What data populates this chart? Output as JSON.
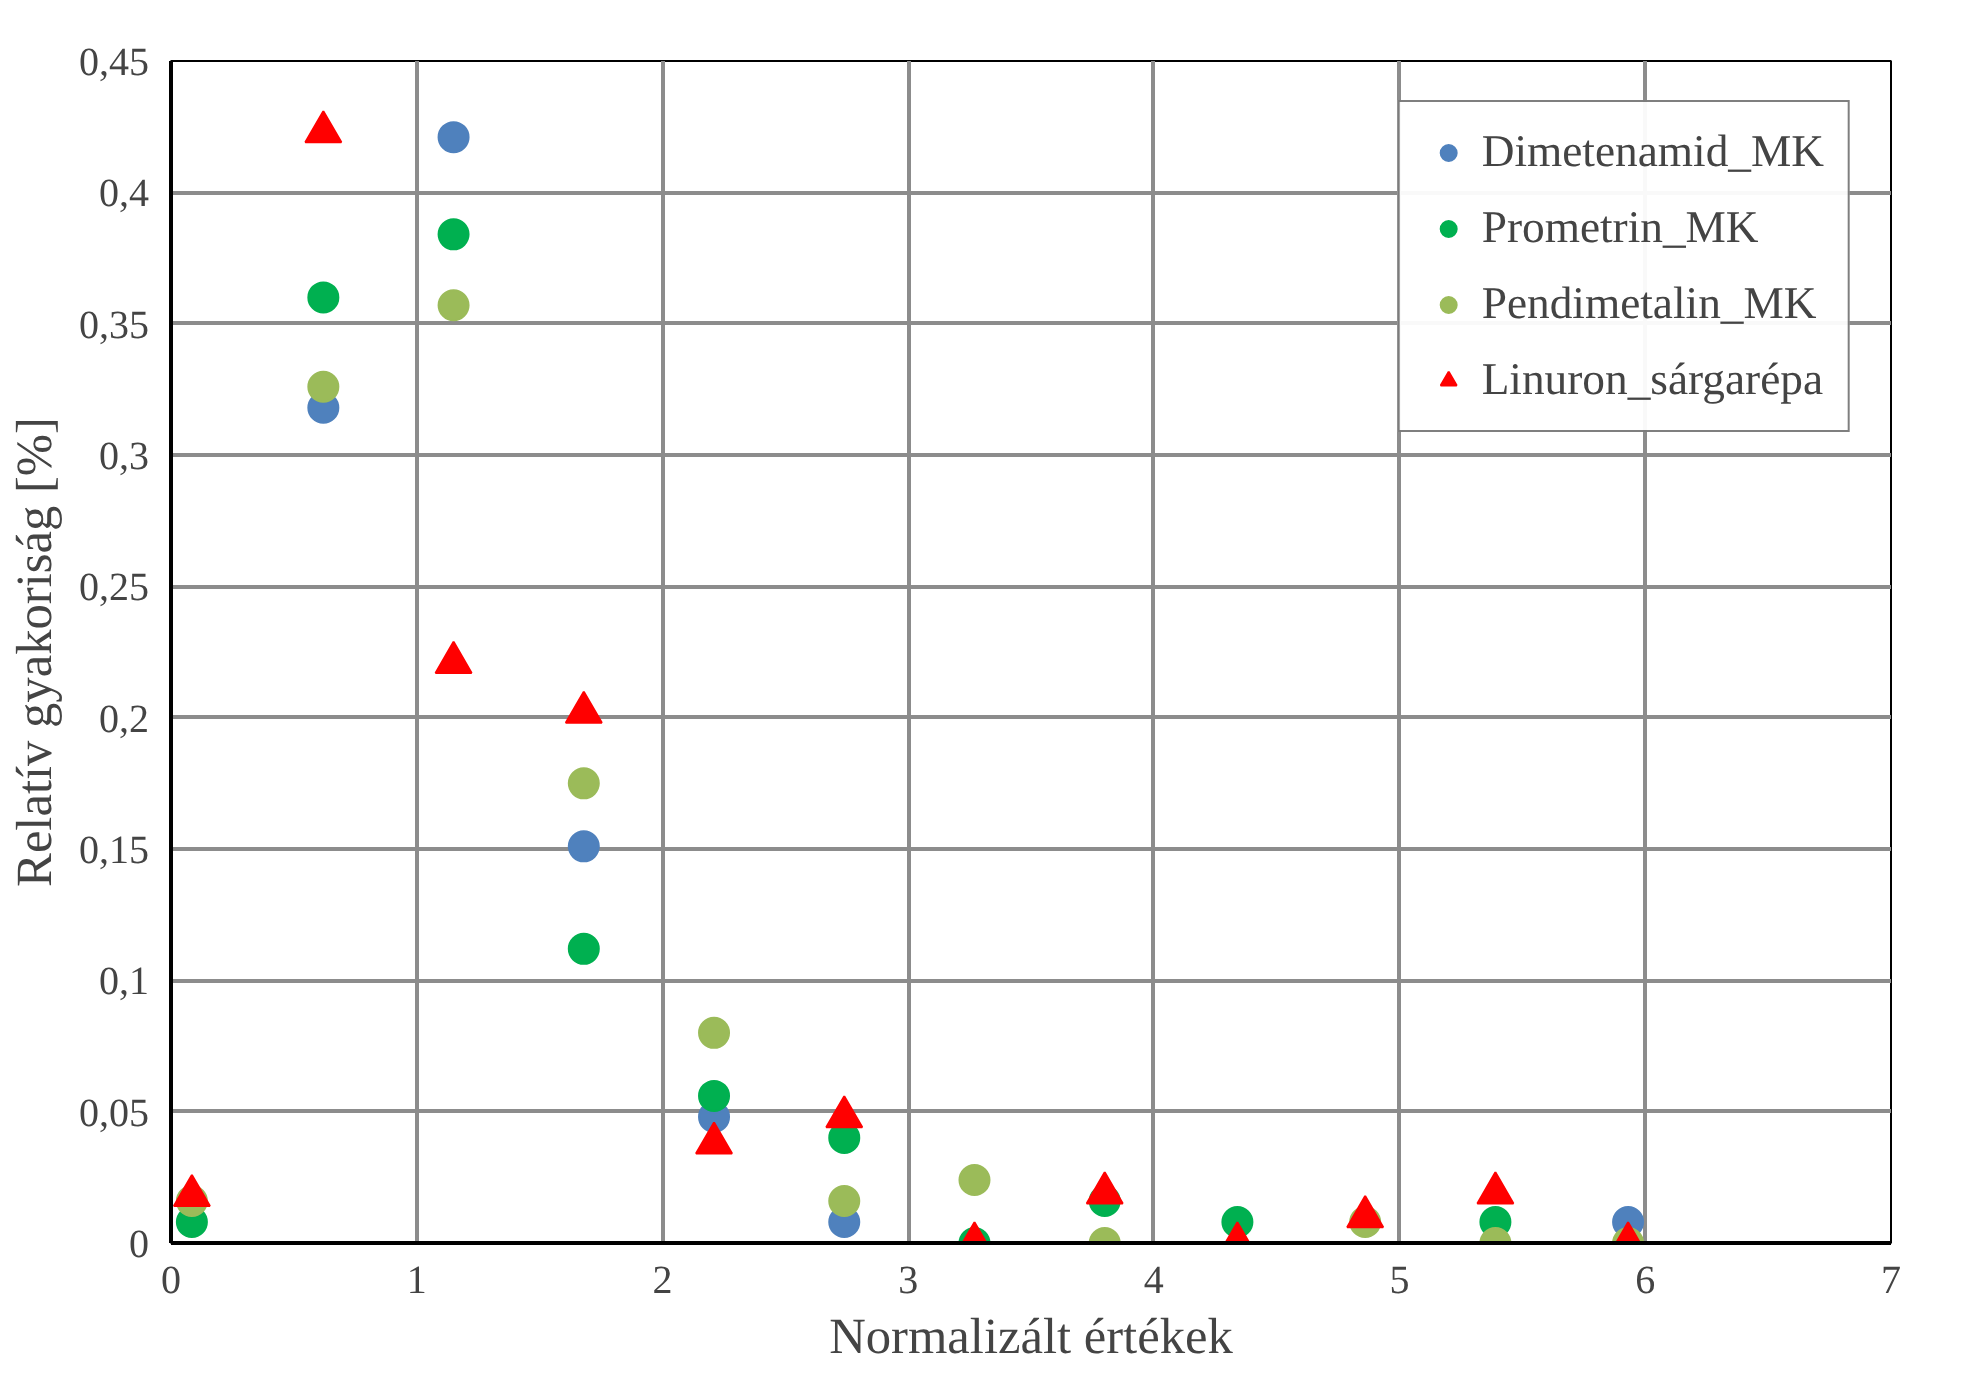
{
  "chart_data": {
    "type": "scatter",
    "xlabel": "Normalizált értékek",
    "ylabel": "Relatív gyakoriság [%]",
    "x": [
      0.085,
      0.62,
      1.15,
      1.68,
      2.21,
      2.74,
      3.27,
      3.8,
      4.34,
      4.86,
      5.39,
      5.93
    ],
    "xlim": [
      0,
      7
    ],
    "xticks": [
      0,
      1,
      2,
      3,
      4,
      5,
      6,
      7
    ],
    "ylim": [
      0,
      0.45
    ],
    "yticks": [
      {
        "value": 0,
        "label": "0"
      },
      {
        "value": 0.05,
        "label": "0,05"
      },
      {
        "value": 0.1,
        "label": "0,1"
      },
      {
        "value": 0.15,
        "label": "0,15"
      },
      {
        "value": 0.2,
        "label": "0,2"
      },
      {
        "value": 0.25,
        "label": "0,25"
      },
      {
        "value": 0.3,
        "label": "0,3"
      },
      {
        "value": 0.35,
        "label": "0,35"
      },
      {
        "value": 0.4,
        "label": "0,4"
      },
      {
        "value": 0.45,
        "label": "0,45"
      }
    ],
    "grid": true,
    "legend": "top right",
    "series": [
      {
        "name": "Dimetenamid_MK",
        "color": "#4f81bd",
        "marker": "circle",
        "values": [
          null,
          0.318,
          0.421,
          0.151,
          0.048,
          0.008,
          null,
          null,
          null,
          null,
          null,
          0.008
        ]
      },
      {
        "name": "Prometrin_MK",
        "color": "#00b050",
        "marker": "circle",
        "values": [
          0.008,
          0.36,
          0.384,
          0.112,
          0.056,
          0.04,
          0,
          0.016,
          0.008,
          null,
          0.008,
          null
        ]
      },
      {
        "name": "Pendimetalin_MK",
        "color": "#9bbb59",
        "marker": "circle",
        "values": [
          0.016,
          0.326,
          0.357,
          0.175,
          0.08,
          0.016,
          0.024,
          0,
          null,
          0.008,
          0,
          0
        ]
      },
      {
        "name": "Linuron_sárgarépa",
        "color": "#ff0000",
        "marker": "triangle",
        "values": [
          0.018,
          0.423,
          0.221,
          0.202,
          0.038,
          0.048,
          0,
          0.019,
          0,
          0.01,
          0.019,
          0
        ]
      }
    ]
  }
}
